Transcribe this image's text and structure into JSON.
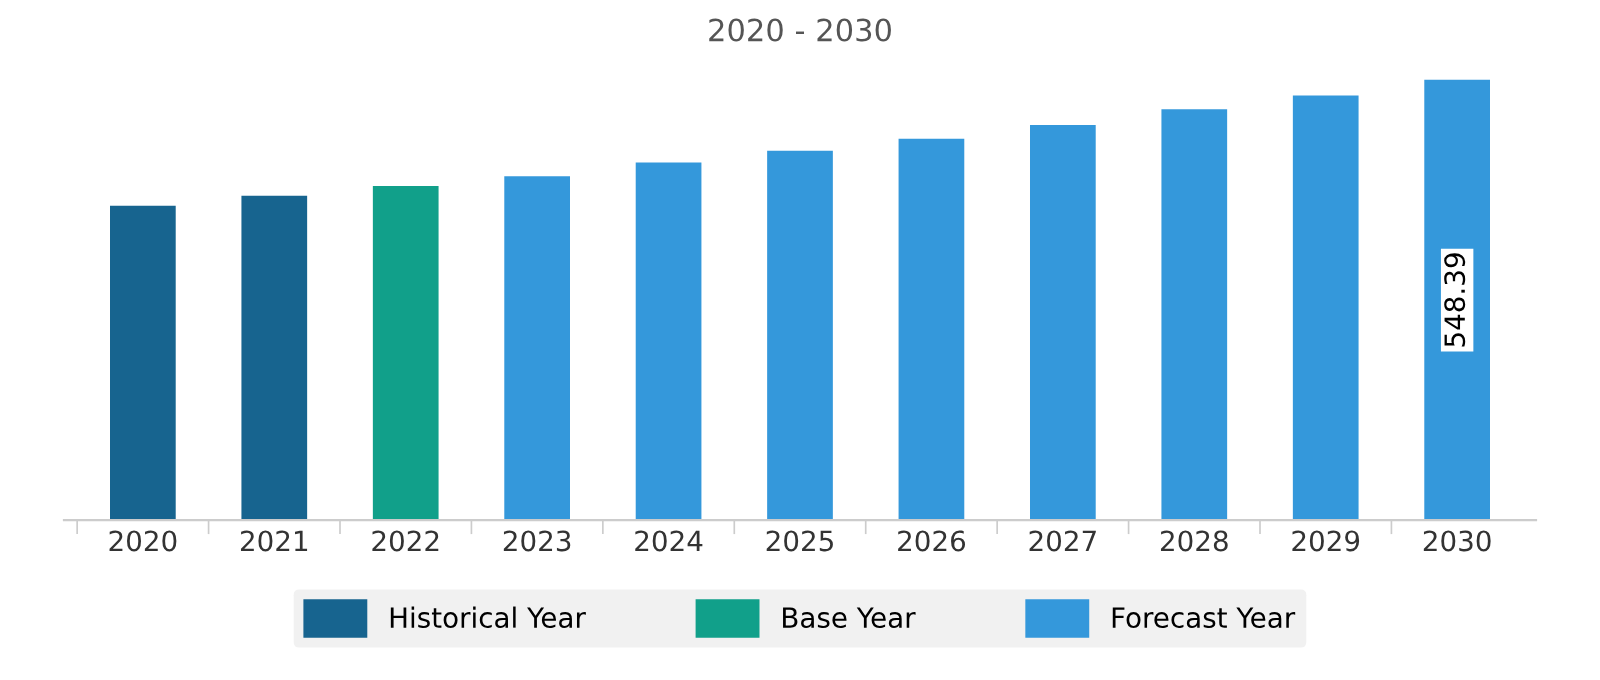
{
  "chart_data": {
    "type": "bar",
    "title": "2020 - 2030",
    "categories": [
      "2020",
      "2021",
      "2022",
      "2023",
      "2024",
      "2025",
      "2026",
      "2027",
      "2028",
      "2029",
      "2030"
    ],
    "stacked": true,
    "series": [
      {
        "name": "Historical Year",
        "color": "#17648f",
        "values": [
          391.7,
          403.9,
          null,
          null,
          null,
          null,
          null,
          null,
          null,
          null,
          null
        ],
        "value_labels": [
          null,
          null,
          null,
          null,
          null,
          null,
          null,
          null,
          null,
          null,
          null
        ]
      },
      {
        "name": "Base Year",
        "color": "#11a08a",
        "values": [
          null,
          null,
          416.2,
          null,
          null,
          null,
          null,
          null,
          null,
          null,
          null
        ],
        "value_labels": [
          null,
          null,
          null,
          null,
          null,
          null,
          null,
          null,
          null,
          null,
          null
        ]
      },
      {
        "name": "Forecast Year",
        "color": "#3498db",
        "values": [
          null,
          null,
          null,
          428.4,
          445.5,
          460.2,
          474.9,
          492.1,
          511.6,
          528.8,
          548.39
        ],
        "value_labels": [
          null,
          null,
          null,
          null,
          null,
          null,
          null,
          null,
          null,
          null,
          "548.39"
        ]
      }
    ],
    "legend": "bottom",
    "grid": false
  }
}
